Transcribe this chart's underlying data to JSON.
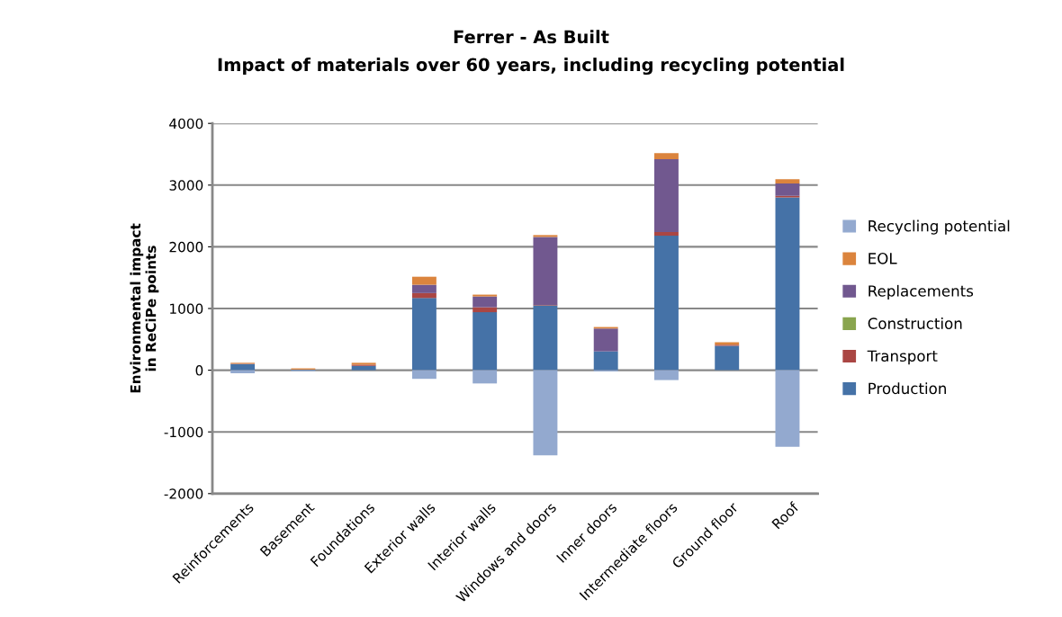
{
  "chart_data": {
    "type": "bar",
    "stacked": true,
    "title": "Ferrer - As Built",
    "subtitle": "Impact of materials over 60 years, including recycling potential",
    "ylabel": "Environmental impact\nin ReCiPe points",
    "categories": [
      "Reinforcements",
      "Basement",
      "Foundations",
      "Exterior walls",
      "Interior walls",
      "Windows and doors",
      "Inner doors",
      "Intermediate floors",
      "Ground floor",
      "Roof"
    ],
    "series": [
      {
        "name": "Production",
        "color": "#4572a7",
        "values": [
          100,
          10,
          70,
          1170,
          940,
          1050,
          305,
          2180,
          395,
          2800
        ]
      },
      {
        "name": "Transport",
        "color": "#aa4643",
        "values": [
          5,
          0,
          20,
          80,
          80,
          10,
          0,
          60,
          20,
          25
        ]
      },
      {
        "name": "Construction",
        "color": "#89a54e",
        "values": [
          0,
          0,
          0,
          0,
          0,
          0,
          0,
          0,
          0,
          0
        ]
      },
      {
        "name": "Replacements",
        "color": "#71588f",
        "values": [
          0,
          0,
          0,
          135,
          175,
          1100,
          370,
          1180,
          0,
          200
        ]
      },
      {
        "name": "EOL",
        "color": "#db843d",
        "values": [
          15,
          20,
          30,
          130,
          30,
          30,
          25,
          100,
          40,
          70
        ]
      },
      {
        "name": "Recycling potential",
        "color": "#93a9cf",
        "values": [
          -50,
          -15,
          null,
          -140,
          -215,
          -1380,
          -20,
          -160,
          null,
          -1240
        ]
      }
    ],
    "ylim": [
      -2000,
      4000
    ],
    "yticks": [
      -2000,
      -1000,
      0,
      1000,
      2000,
      3000,
      4000
    ],
    "grid": "y",
    "legend": "right"
  }
}
